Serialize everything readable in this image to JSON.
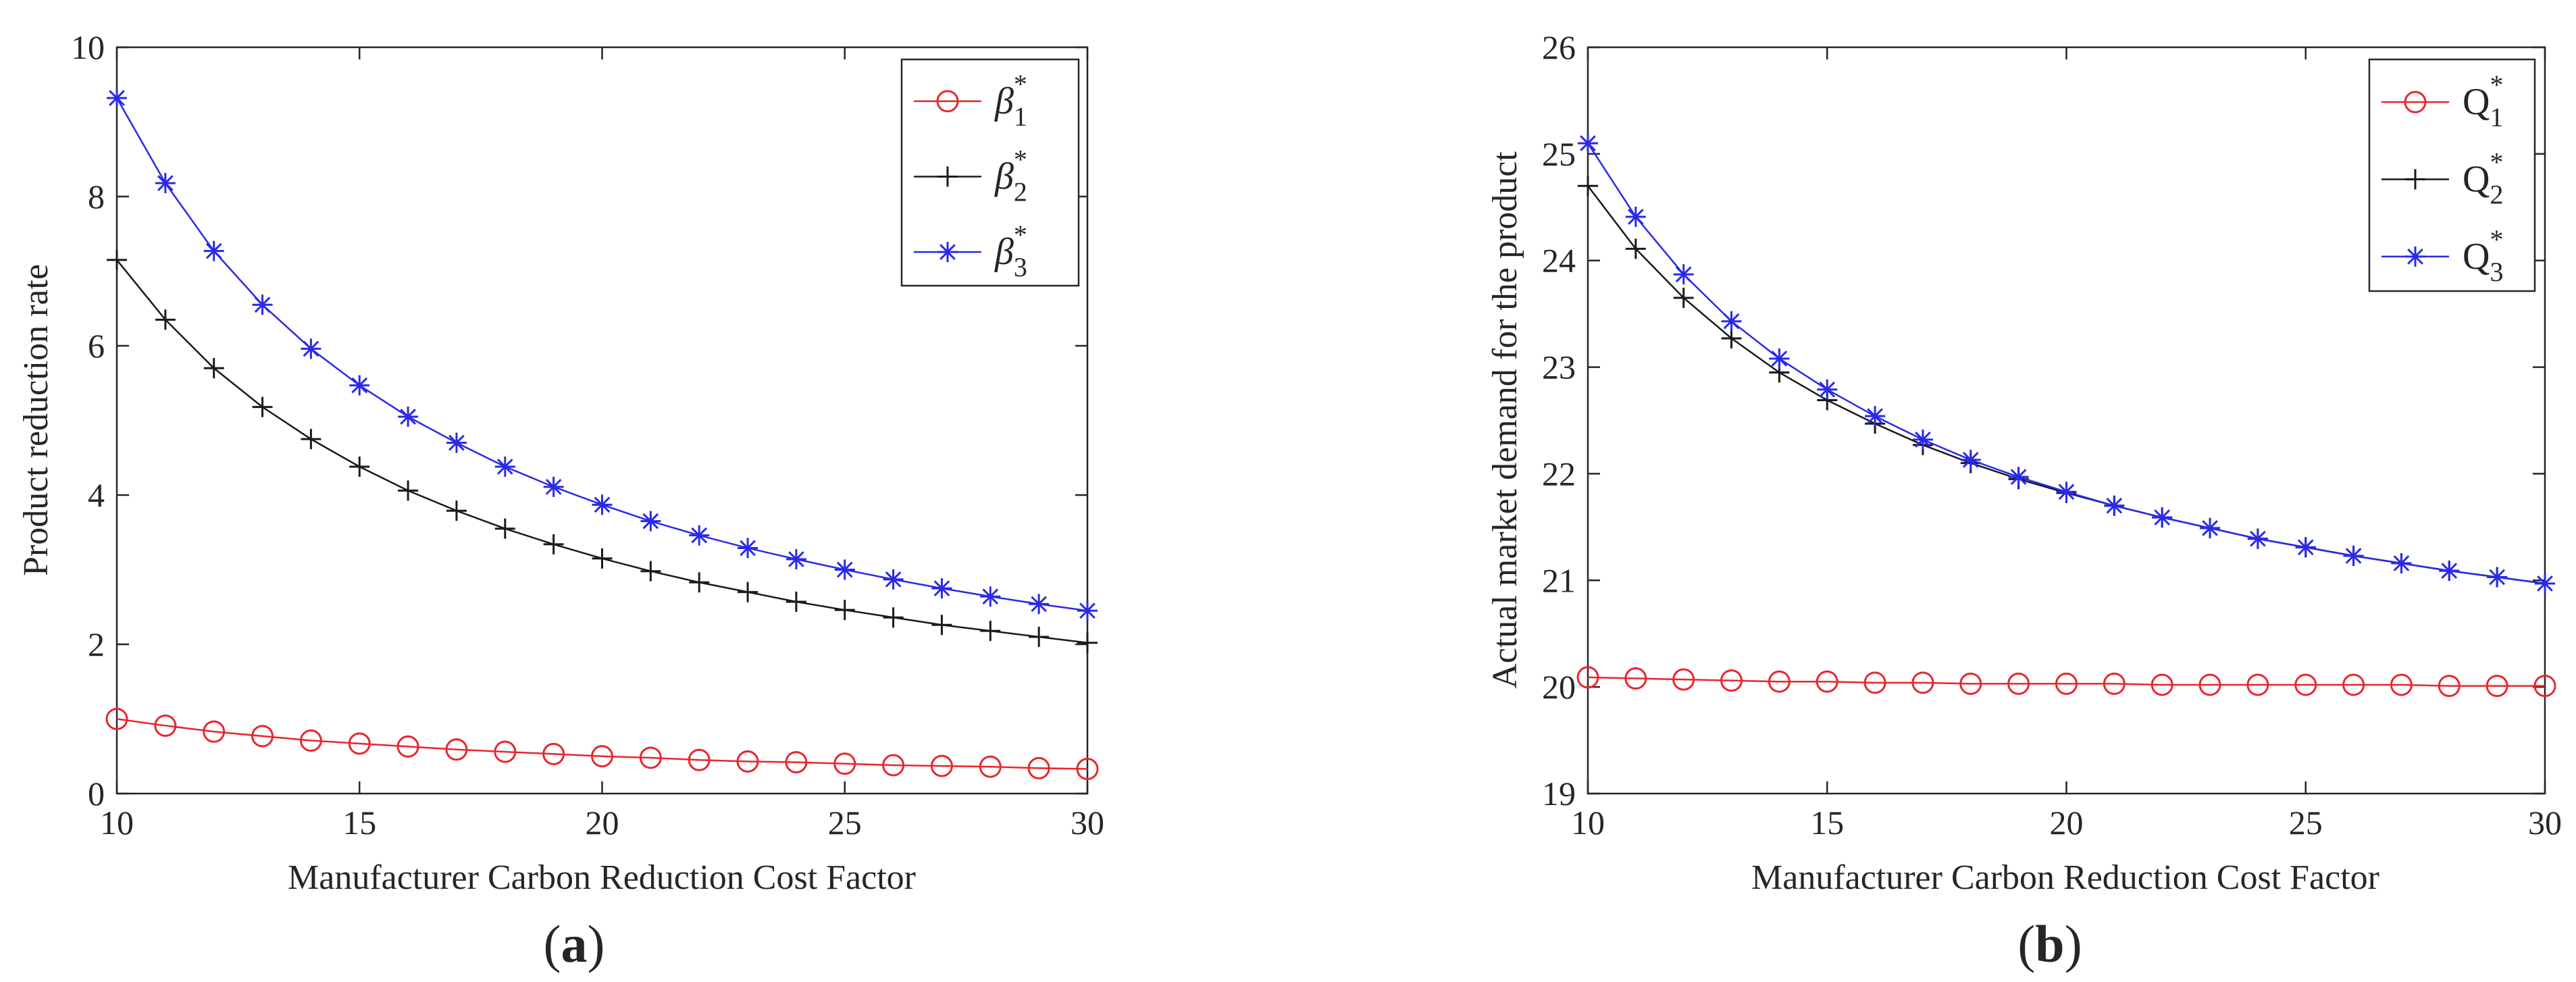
{
  "figure": {
    "panel_labels": [
      {
        "open": "(",
        "letter": "a",
        "close": ")"
      },
      {
        "open": "(",
        "letter": "b",
        "close": ")"
      }
    ]
  },
  "chart_data": [
    {
      "type": "line",
      "panel": "a",
      "title": "",
      "xlabel": "Manufacturer Carbon Reduction Cost Factor",
      "ylabel": "Product reduction rate",
      "xlim": [
        10,
        30
      ],
      "ylim": [
        0,
        10
      ],
      "xticks": [
        10,
        15,
        20,
        25,
        30
      ],
      "yticks": [
        0,
        2,
        4,
        6,
        8,
        10
      ],
      "grid": false,
      "legend_position": "top-right",
      "x": [
        10,
        11,
        12,
        13,
        14,
        15,
        16,
        17,
        18,
        19,
        20,
        21,
        22,
        23,
        24,
        25,
        26,
        27,
        28,
        29,
        30
      ],
      "series": [
        {
          "name": "β₁*",
          "symbol": "β",
          "sub": "1",
          "sup": "*",
          "color": "#e8262d",
          "marker": "circle",
          "values": [
            1.0,
            0.91,
            0.83,
            0.77,
            0.71,
            0.67,
            0.63,
            0.59,
            0.56,
            0.53,
            0.5,
            0.48,
            0.45,
            0.43,
            0.42,
            0.4,
            0.38,
            0.37,
            0.36,
            0.34,
            0.33
          ]
        },
        {
          "name": "β₂*",
          "symbol": "β",
          "sub": "2",
          "sup": "*",
          "color": "#1a1a1a",
          "marker": "plus",
          "values": [
            7.15,
            6.35,
            5.7,
            5.18,
            4.75,
            4.38,
            4.06,
            3.79,
            3.55,
            3.34,
            3.15,
            2.98,
            2.83,
            2.7,
            2.57,
            2.46,
            2.36,
            2.26,
            2.18,
            2.1,
            2.02
          ]
        },
        {
          "name": "β₃*",
          "symbol": "β",
          "sub": "3",
          "sup": "*",
          "color": "#2a2ae6",
          "marker": "asterisk",
          "values": [
            9.32,
            8.18,
            7.27,
            6.55,
            5.96,
            5.47,
            5.05,
            4.7,
            4.38,
            4.11,
            3.87,
            3.65,
            3.46,
            3.29,
            3.14,
            3.0,
            2.87,
            2.75,
            2.64,
            2.54,
            2.45
          ]
        }
      ]
    },
    {
      "type": "line",
      "panel": "b",
      "title": "",
      "xlabel": "Manufacturer Carbon Reduction Cost Factor",
      "ylabel": "Actual market demand for the product",
      "xlim": [
        10,
        30
      ],
      "ylim": [
        19,
        26
      ],
      "xticks": [
        10,
        15,
        20,
        25,
        30
      ],
      "yticks": [
        19,
        20,
        21,
        22,
        23,
        24,
        25,
        26
      ],
      "grid": false,
      "legend_position": "top-right",
      "x": [
        10,
        11,
        12,
        13,
        14,
        15,
        16,
        17,
        18,
        19,
        20,
        21,
        22,
        23,
        24,
        25,
        26,
        27,
        28,
        29,
        30
      ],
      "series": [
        {
          "name": "Q₁*",
          "symbol": "Q",
          "sub": "1",
          "sup": "*",
          "color": "#e8262d",
          "marker": "circle",
          "values": [
            20.09,
            20.08,
            20.07,
            20.06,
            20.05,
            20.05,
            20.04,
            20.04,
            20.03,
            20.03,
            20.03,
            20.03,
            20.02,
            20.02,
            20.02,
            20.02,
            20.02,
            20.02,
            20.01,
            20.01,
            20.01
          ]
        },
        {
          "name": "Q₂*",
          "symbol": "Q",
          "sub": "2",
          "sup": "*",
          "color": "#1a1a1a",
          "marker": "plus",
          "values": [
            24.7,
            24.11,
            23.65,
            23.27,
            22.95,
            22.69,
            22.47,
            22.27,
            22.1,
            21.95,
            21.82,
            21.7,
            21.59,
            21.49,
            21.39,
            21.31,
            21.23,
            21.16,
            21.09,
            21.03,
            20.97
          ]
        },
        {
          "name": "Q₃*",
          "symbol": "Q",
          "sub": "3",
          "sup": "*",
          "color": "#2a2ae6",
          "marker": "asterisk",
          "values": [
            25.1,
            24.41,
            23.87,
            23.43,
            23.08,
            22.79,
            22.54,
            22.32,
            22.13,
            21.97,
            21.83,
            21.7,
            21.59,
            21.49,
            21.39,
            21.31,
            21.23,
            21.16,
            21.09,
            21.03,
            20.97
          ]
        }
      ]
    }
  ]
}
